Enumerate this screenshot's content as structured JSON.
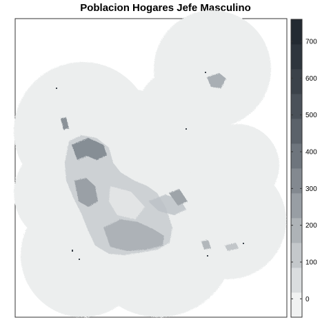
{
  "title": "Poblacion Hogares Jefe Masculino",
  "legend": {
    "tick_labels": [
      "700",
      "600",
      "500",
      "400",
      "300",
      "200",
      "100",
      "0"
    ],
    "tick_values": [
      700,
      600,
      500,
      400,
      300,
      200,
      100,
      0
    ],
    "range": [
      -50,
      760
    ],
    "bin_colors": [
      "#f1f2f2",
      "#dadddf",
      "#c4c8cb",
      "#aeb3b7",
      "#989ea4",
      "#838990",
      "#6e757d",
      "#5b626a",
      "#4a5159",
      "#3b424a",
      "#2e353d",
      "#232a32"
    ]
  },
  "colors": {
    "map_base": "#eceeee",
    "map_stroke": "#e3e6e6",
    "frame": "#333333",
    "text": "#000000"
  }
}
